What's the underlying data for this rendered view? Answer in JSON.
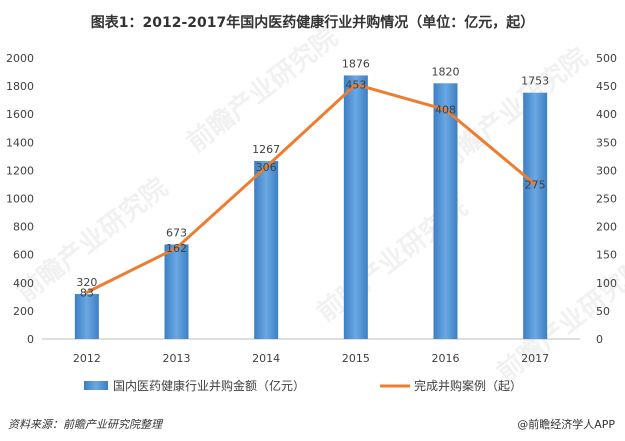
{
  "chart_data": {
    "type": "bar",
    "title": "图表1：2012-2017年国内医药健康行业并购情况（单位：亿元，起）",
    "categories": [
      "2012",
      "2013",
      "2014",
      "2015",
      "2016",
      "2017"
    ],
    "series": [
      {
        "name": "国内医药健康行业并购金额（亿元）",
        "type": "bar",
        "axis": "left",
        "values": [
          320,
          673,
          1267,
          1876,
          1820,
          1753
        ],
        "color": "#4e8fd0"
      },
      {
        "name": "完成并购案例（起）",
        "type": "line",
        "axis": "right",
        "values": [
          83,
          162,
          306,
          453,
          408,
          275
        ],
        "color": "#ed7d31"
      }
    ],
    "y_left": {
      "min": 0,
      "max": 2000,
      "step": 200
    },
    "y_right": {
      "min": 0,
      "max": 500,
      "step": 50
    },
    "legend_position": "bottom",
    "grid": false
  },
  "footer": {
    "source": "资料来源：前瞻产业研究院整理",
    "brand": "@前瞻经济学人APP"
  },
  "watermark": "前瞻产业研究院"
}
